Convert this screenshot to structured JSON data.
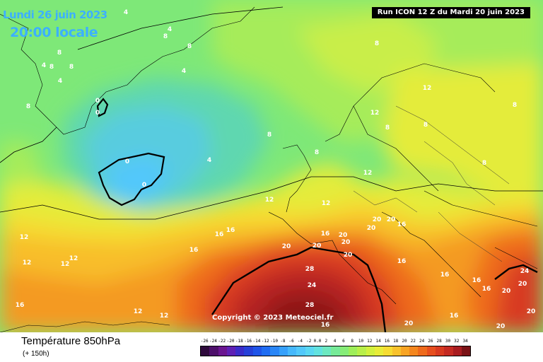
{
  "header": {
    "date": "Lundi 26 juin 2023",
    "time": "20:00 locale",
    "run": "Run ICON 12 Z du Mardi 20 juin 2023"
  },
  "copyright": "Copyright © 2023 Meteociel.fr",
  "footer": {
    "parameter": "Température 850hPa",
    "lead": "(+ 150h)"
  },
  "legend": {
    "labels": [
      "-26",
      "-24",
      "-22",
      "-20",
      "-18",
      "-16",
      "-14",
      "-12",
      "-10",
      "-8",
      "-6",
      "-4",
      "-2",
      "0.0",
      "2",
      "4",
      "6",
      "8",
      "10",
      "12",
      "14",
      "16",
      "18",
      "20",
      "22",
      "24",
      "26",
      "28",
      "30",
      "32",
      "34"
    ],
    "colors": [
      "#2e0a3c",
      "#4d0f6a",
      "#6a1590",
      "#5e20b4",
      "#3a2cc9",
      "#2640d8",
      "#1f54e8",
      "#1f6cf2",
      "#2a86f7",
      "#36a0fb",
      "#46b8fc",
      "#52c8fb",
      "#5ad7f2",
      "#62e2df",
      "#6ce8c0",
      "#76ea98",
      "#86ec78",
      "#9eee5a",
      "#b8ef4a",
      "#d2f03e",
      "#e8ec38",
      "#f6dc32",
      "#f8c22c",
      "#f8a424",
      "#f4861e",
      "#ee6a1c",
      "#e64e1e",
      "#d83a20",
      "#c42a22",
      "#a81c20",
      "#7a1216"
    ]
  },
  "contour_labels": [
    {
      "v": "4",
      "lx": 178,
      "ly": 20
    },
    {
      "v": "4",
      "lx": 240,
      "ly": 44
    },
    {
      "v": "4",
      "lx": 260,
      "ly": 103
    },
    {
      "v": "4",
      "lx": 296,
      "ly": 229
    },
    {
      "v": "4",
      "lx": 85,
      "ly": 117
    },
    {
      "v": "4",
      "lx": 62,
      "ly": 95
    },
    {
      "v": "8",
      "lx": 234,
      "ly": 54
    },
    {
      "v": "8",
      "lx": 268,
      "ly": 68
    },
    {
      "v": "8",
      "lx": 533,
      "ly": 64
    },
    {
      "v": "8",
      "lx": 381,
      "ly": 193
    },
    {
      "v": "8",
      "lx": 448,
      "ly": 218
    },
    {
      "v": "8",
      "lx": 101,
      "ly": 97
    },
    {
      "v": "8",
      "lx": 84,
      "ly": 77
    },
    {
      "v": "8",
      "lx": 73,
      "ly": 97
    },
    {
      "v": "8",
      "lx": 40,
      "ly": 153
    },
    {
      "v": "8",
      "lx": 602,
      "ly": 179
    },
    {
      "v": "8",
      "lx": 685,
      "ly": 233
    },
    {
      "v": "8",
      "lx": 728,
      "ly": 151
    },
    {
      "v": "8",
      "lx": 548,
      "ly": 183
    },
    {
      "v": "0",
      "lx": 180,
      "ly": 231
    },
    {
      "v": "0",
      "lx": 138,
      "ly": 145
    },
    {
      "v": "0",
      "lx": 138,
      "ly": 162
    },
    {
      "v": "0",
      "lx": 204,
      "ly": 264
    },
    {
      "v": "12",
      "lx": 381,
      "ly": 285
    },
    {
      "v": "12",
      "lx": 461,
      "ly": 290
    },
    {
      "v": "12",
      "lx": 604,
      "ly": 127
    },
    {
      "v": "12",
      "lx": 530,
      "ly": 162
    },
    {
      "v": "12",
      "lx": 520,
      "ly": 247
    },
    {
      "v": "12",
      "lx": 38,
      "ly": 374
    },
    {
      "v": "12",
      "lx": 92,
      "ly": 376
    },
    {
      "v": "12",
      "lx": 104,
      "ly": 368
    },
    {
      "v": "12",
      "lx": 34,
      "ly": 338
    },
    {
      "v": "12",
      "lx": 195,
      "ly": 443
    },
    {
      "v": "12",
      "lx": 232,
      "ly": 449
    },
    {
      "v": "16",
      "lx": 310,
      "ly": 334
    },
    {
      "v": "16",
      "lx": 274,
      "ly": 356
    },
    {
      "v": "16",
      "lx": 460,
      "ly": 333
    },
    {
      "v": "16",
      "lx": 568,
      "ly": 372
    },
    {
      "v": "16",
      "lx": 568,
      "ly": 320
    },
    {
      "v": "16",
      "lx": 629,
      "ly": 391
    },
    {
      "v": "16",
      "lx": 674,
      "ly": 399
    },
    {
      "v": "16",
      "lx": 688,
      "ly": 411
    },
    {
      "v": "16",
      "lx": 642,
      "ly": 449
    },
    {
      "v": "16",
      "lx": 28,
      "ly": 434
    },
    {
      "v": "16",
      "lx": 326,
      "ly": 328
    },
    {
      "v": "20",
      "lx": 405,
      "ly": 351
    },
    {
      "v": "20",
      "lx": 448,
      "ly": 350
    },
    {
      "v": "20",
      "lx": 485,
      "ly": 335
    },
    {
      "v": "20",
      "lx": 489,
      "ly": 345
    },
    {
      "v": "20",
      "lx": 492,
      "ly": 363
    },
    {
      "v": "20",
      "lx": 525,
      "ly": 325
    },
    {
      "v": "20",
      "lx": 533,
      "ly": 313
    },
    {
      "v": "20",
      "lx": 553,
      "ly": 313
    },
    {
      "v": "20",
      "lx": 578,
      "ly": 460
    },
    {
      "v": "20",
      "lx": 716,
      "ly": 414
    },
    {
      "v": "20",
      "lx": 708,
      "ly": 464
    },
    {
      "v": "20",
      "lx": 751,
      "ly": 443
    },
    {
      "v": "24",
      "lx": 441,
      "ly": 406
    },
    {
      "v": "24",
      "lx": 742,
      "ly": 386
    },
    {
      "v": "28",
      "lx": 438,
      "ly": 383
    },
    {
      "v": "28",
      "lx": 438,
      "ly": 434
    },
    {
      "v": "20",
      "lx": 739,
      "ly": 404
    },
    {
      "v": "16",
      "lx": 460,
      "ly": 462
    }
  ]
}
